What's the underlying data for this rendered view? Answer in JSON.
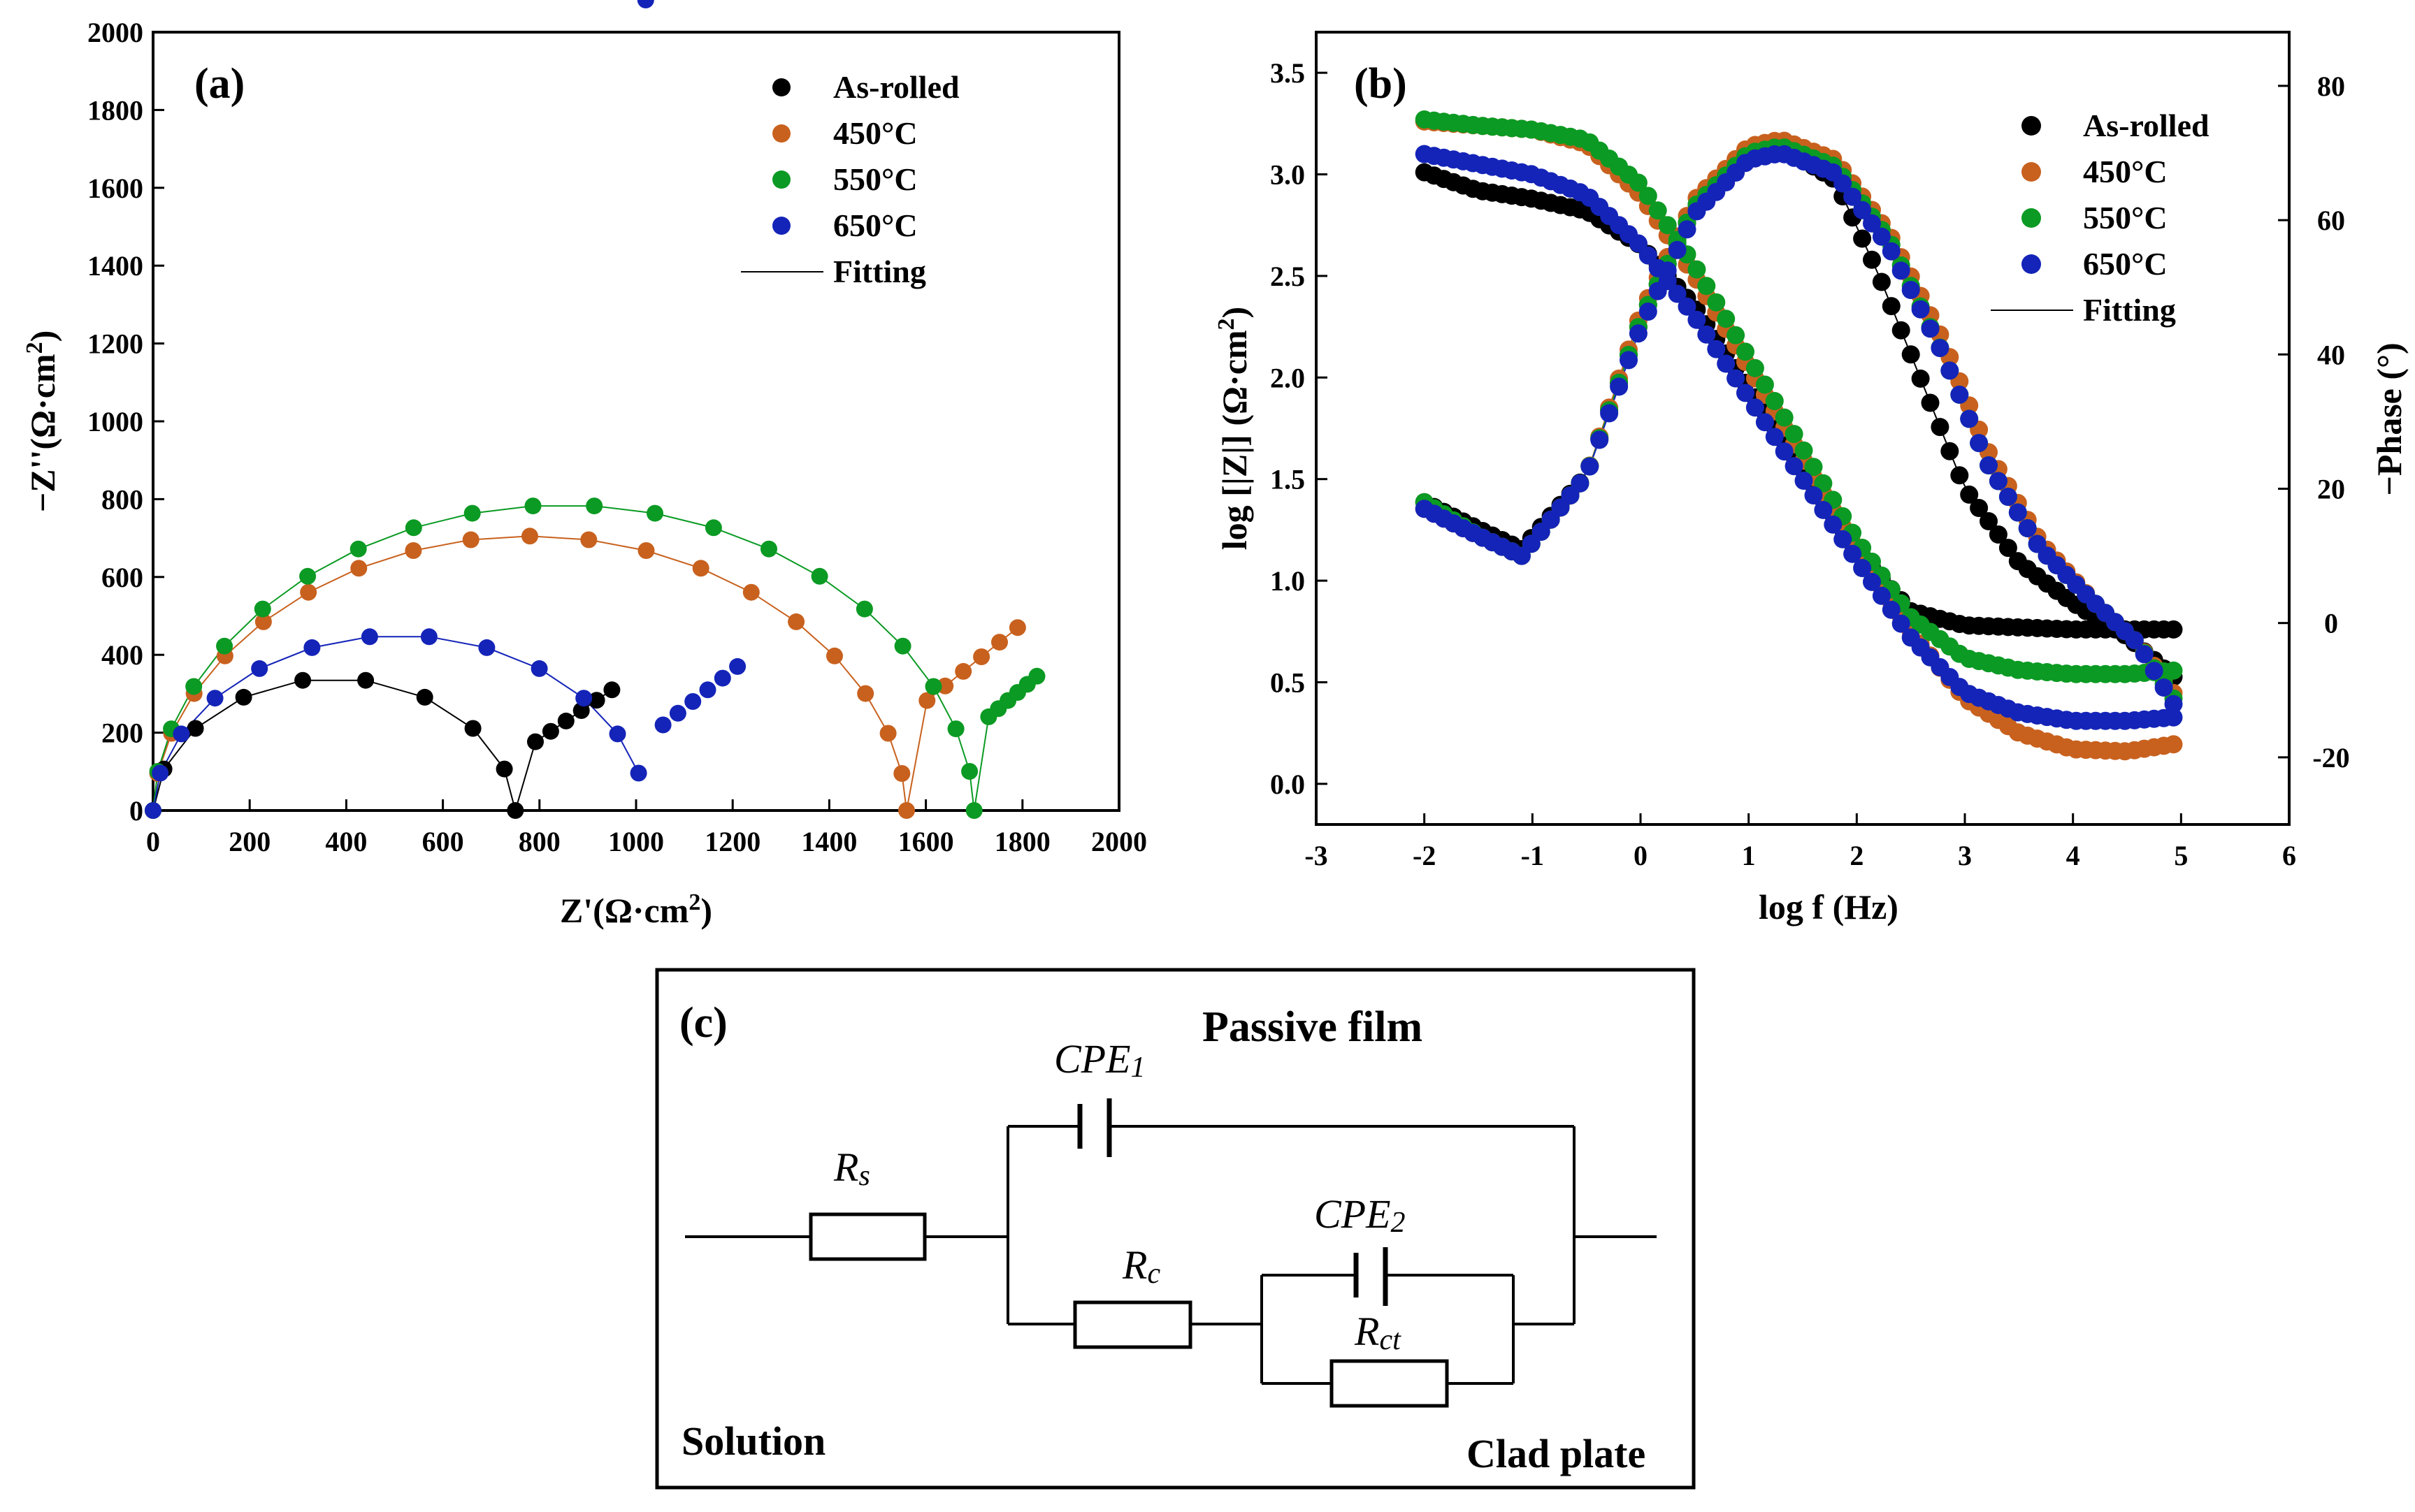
{
  "chart_data": [
    {
      "panel_label": "(a)",
      "type": "scatter",
      "xlabel": "Z'(Ω·cm²)",
      "ylabel": "−Z''(Ω·cm²)",
      "xlim": [
        0,
        2000
      ],
      "ylim": [
        0,
        2000
      ],
      "xticks": [
        "0",
        "200",
        "400",
        "600",
        "800",
        "1000",
        "1200",
        "1400",
        "1600",
        "1800",
        "2000"
      ],
      "yticks": [
        "0",
        "200",
        "400",
        "600",
        "800",
        "1000",
        "1200",
        "1400",
        "1600",
        "1800",
        "2000"
      ],
      "legend": [
        "As-rolled",
        "450°C",
        "550°C",
        "650°C",
        "Fitting"
      ],
      "legend_position": "top-right",
      "series": [
        {
          "name": "As-rolled",
          "color": "#000000",
          "arc": [
            0,
            750,
            340
          ],
          "tail": [
            [
              760,
              150
            ],
            [
              950,
              310
            ]
          ]
        },
        {
          "name": "450°C",
          "color": "#c8611e",
          "arc": [
            0,
            1560,
            705
          ],
          "tail": [
            [
              1565,
              245
            ],
            [
              1790,
              470
            ]
          ]
        },
        {
          "name": "550°C",
          "color": "#0b9a23",
          "arc": [
            0,
            1700,
            785
          ],
          "tail": [
            [
              1710,
              220
            ],
            [
              1830,
              345
            ]
          ]
        },
        {
          "name": "650°C",
          "color": "#1424b8",
          "arc": [
            0,
            1020,
            450
          ],
          "tail": [
            [
              1025,
              190
            ],
            [
              1210,
              370
            ]
          ]
        }
      ]
    },
    {
      "panel_label": "(b)",
      "type": "scatter",
      "xlabel": "log f (Hz)",
      "ylabel": "log [|Z|] (Ω·cm²)",
      "y2label": "−Phase (°)",
      "xlim": [
        -3,
        6
      ],
      "ylim": [
        -0.2,
        3.7
      ],
      "y2lim": [
        -30,
        88
      ],
      "xticks": [
        "-3",
        "-2",
        "-1",
        "0",
        "1",
        "2",
        "3",
        "4",
        "5",
        "6"
      ],
      "yticks": [
        "0.0",
        "0.5",
        "1.0",
        "1.5",
        "2.0",
        "2.5",
        "3.0",
        "3.5"
      ],
      "y2ticks": [
        "-20",
        "0",
        "20",
        "40",
        "60",
        "80"
      ],
      "legend": [
        "As-rolled",
        "450°C",
        "550°C",
        "650°C",
        "Fitting"
      ],
      "legend_position": "top-right",
      "series": [
        {
          "name": "As-rolled",
          "color": "#000000",
          "logZ": [
            [
              -2,
              3.01
            ],
            [
              -1.5,
              2.92
            ],
            [
              -1,
              2.88
            ],
            [
              -0.5,
              2.82
            ],
            [
              0,
              2.65
            ],
            [
              0.5,
              2.35
            ],
            [
              1,
              1.95
            ],
            [
              1.5,
              1.55
            ],
            [
              2,
              1.15
            ],
            [
              2.5,
              0.85
            ],
            [
              3,
              0.78
            ],
            [
              4,
              0.76
            ],
            [
              5,
              0.76
            ]
          ],
          "phase": [
            [
              -2,
              18
            ],
            [
              -1.5,
              14
            ],
            [
              -1.1,
              11
            ],
            [
              -0.5,
              22
            ],
            [
              0,
              45
            ],
            [
              0.5,
              62
            ],
            [
              1,
              69
            ],
            [
              1.3,
              71
            ],
            [
              1.8,
              66
            ],
            [
              2.2,
              52
            ],
            [
              2.6,
              36
            ],
            [
              3,
              20
            ],
            [
              3.5,
              9
            ],
            [
              4,
              3
            ],
            [
              4.5,
              -2
            ],
            [
              5,
              -9
            ]
          ]
        },
        {
          "name": "450°C",
          "color": "#c8611e",
          "logZ": [
            [
              -2,
              3.26
            ],
            [
              -1.5,
              3.24
            ],
            [
              -1,
              3.22
            ],
            [
              -0.5,
              3.15
            ],
            [
              0,
              2.9
            ],
            [
              0.5,
              2.5
            ],
            [
              1,
              2.05
            ],
            [
              1.5,
              1.6
            ],
            [
              2,
              1.15
            ],
            [
              2.5,
              0.75
            ],
            [
              3,
              0.42
            ],
            [
              3.5,
              0.25
            ],
            [
              4,
              0.17
            ],
            [
              4.5,
              0.16
            ],
            [
              5,
              0.2
            ]
          ],
          "phase": [
            [
              -2,
              17
            ],
            [
              -1.5,
              13
            ],
            [
              -1.1,
              10
            ],
            [
              -0.5,
              22
            ],
            [
              0,
              46
            ],
            [
              0.5,
              63
            ],
            [
              1,
              71
            ],
            [
              1.3,
              72
            ],
            [
              1.8,
              69
            ],
            [
              2.3,
              58
            ],
            [
              2.8,
              42
            ],
            [
              3.2,
              26
            ],
            [
              3.7,
              12
            ],
            [
              4.2,
              3
            ],
            [
              4.6,
              -3
            ],
            [
              5,
              -12
            ]
          ]
        },
        {
          "name": "550°C",
          "color": "#0b9a23",
          "logZ": [
            [
              -2,
              3.27
            ],
            [
              -1.5,
              3.24
            ],
            [
              -1,
              3.22
            ],
            [
              -0.5,
              3.17
            ],
            [
              0,
              2.95
            ],
            [
              0.5,
              2.55
            ],
            [
              1,
              2.1
            ],
            [
              1.5,
              1.65
            ],
            [
              2,
              1.2
            ],
            [
              2.5,
              0.82
            ],
            [
              3,
              0.62
            ],
            [
              3.5,
              0.56
            ],
            [
              4,
              0.54
            ],
            [
              4.5,
              0.54
            ],
            [
              5,
              0.56
            ]
          ],
          "phase": [
            [
              -2,
              18
            ],
            [
              -1.5,
              13
            ],
            [
              -1.1,
              10
            ],
            [
              -0.5,
              22
            ],
            [
              0,
              45
            ],
            [
              0.5,
              62
            ],
            [
              1,
              70
            ],
            [
              1.3,
              71
            ],
            [
              1.8,
              68
            ],
            [
              2.3,
              57
            ],
            [
              2.8,
              40
            ],
            [
              3.2,
              24
            ],
            [
              3.7,
              11
            ],
            [
              4.2,
              3
            ],
            [
              4.6,
              -3
            ],
            [
              5,
              -13
            ]
          ]
        },
        {
          "name": "650°C",
          "color": "#1424b8",
          "logZ": [
            [
              -2,
              3.1
            ],
            [
              -1.5,
              3.05
            ],
            [
              -1,
              3.0
            ],
            [
              -0.5,
              2.9
            ],
            [
              0,
              2.65
            ],
            [
              0.5,
              2.3
            ],
            [
              1,
              1.9
            ],
            [
              1.5,
              1.5
            ],
            [
              2,
              1.1
            ],
            [
              2.5,
              0.72
            ],
            [
              3,
              0.45
            ],
            [
              3.5,
              0.35
            ],
            [
              4,
              0.31
            ],
            [
              4.5,
              0.31
            ],
            [
              5,
              0.33
            ]
          ],
          "phase": [
            [
              -2,
              17
            ],
            [
              -1.5,
              13
            ],
            [
              -1.1,
              10
            ],
            [
              -0.5,
              22
            ],
            [
              0,
              44
            ],
            [
              0.5,
              61
            ],
            [
              1,
              69
            ],
            [
              1.3,
              70
            ],
            [
              1.8,
              67
            ],
            [
              2.3,
              56
            ],
            [
              2.8,
              40
            ],
            [
              3.2,
              24
            ],
            [
              3.7,
              11
            ],
            [
              4.2,
              3
            ],
            [
              4.6,
              -3
            ],
            [
              5,
              -14
            ]
          ]
        }
      ]
    }
  ],
  "circuit": {
    "panel_label": "(c)",
    "title": "Passive film",
    "left_label": "Solution",
    "right_label": "Clad plate",
    "components": {
      "rs": "Rs",
      "rc": "Rc",
      "rct": "Rct",
      "cpe1": "CPE1",
      "cpe2": "CPE2"
    }
  }
}
